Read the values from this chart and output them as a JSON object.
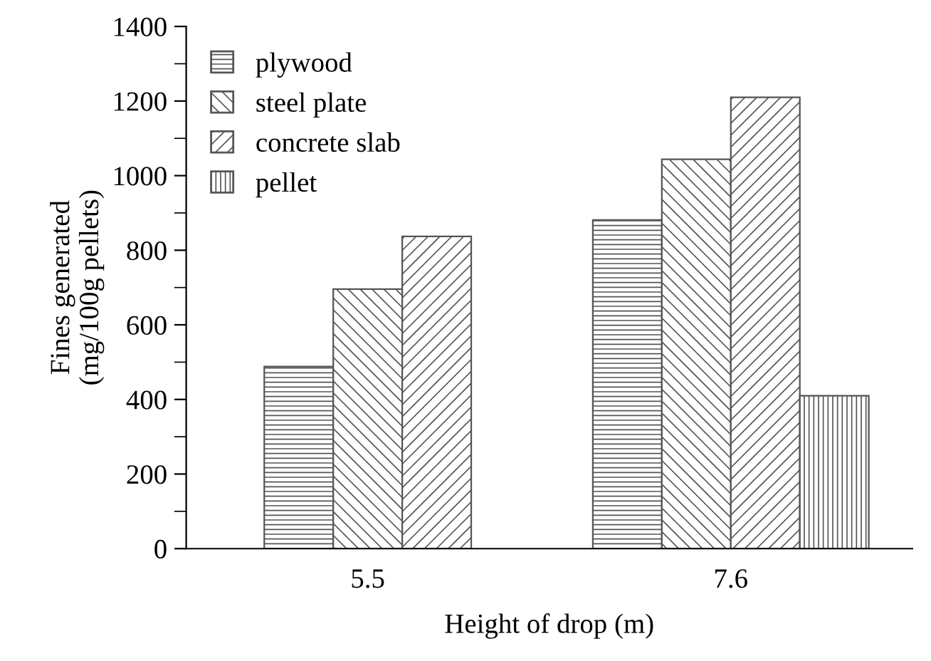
{
  "chart_data": {
    "type": "bar",
    "xlabel": "Height of drop (m)",
    "ylabel": "Fines generated\n(mg/100g pellets)",
    "categories": [
      "5.5",
      "7.6"
    ],
    "series": [
      {
        "name": "plywood",
        "color": "#555555",
        "values": [
          488,
          881
        ]
      },
      {
        "name": "steel plate",
        "color": "#555555",
        "values": [
          696,
          1044
        ]
      },
      {
        "name": "concrete slab",
        "color": "#555555",
        "values": [
          837,
          1210
        ]
      },
      {
        "name": "pellet",
        "color": "#555555",
        "values": [
          null,
          410
        ]
      }
    ],
    "ylim": [
      0,
      1400
    ],
    "yticks": [
      0,
      200,
      400,
      600,
      800,
      1000,
      1200,
      1400
    ],
    "grid": false,
    "legend": "top left"
  }
}
